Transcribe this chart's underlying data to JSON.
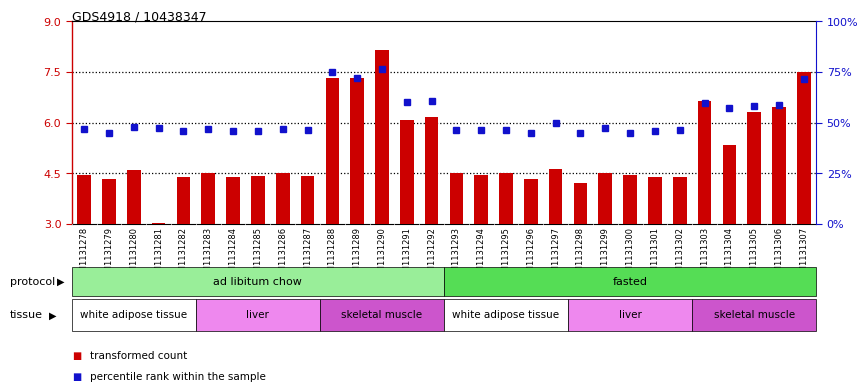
{
  "title": "GDS4918 / 10438347",
  "samples": [
    "GSM1131278",
    "GSM1131279",
    "GSM1131280",
    "GSM1131281",
    "GSM1131282",
    "GSM1131283",
    "GSM1131284",
    "GSM1131285",
    "GSM1131286",
    "GSM1131287",
    "GSM1131288",
    "GSM1131289",
    "GSM1131290",
    "GSM1131291",
    "GSM1131292",
    "GSM1131293",
    "GSM1131294",
    "GSM1131295",
    "GSM1131296",
    "GSM1131297",
    "GSM1131298",
    "GSM1131299",
    "GSM1131300",
    "GSM1131301",
    "GSM1131302",
    "GSM1131303",
    "GSM1131304",
    "GSM1131305",
    "GSM1131306",
    "GSM1131307"
  ],
  "bar_values": [
    4.45,
    4.32,
    4.58,
    3.02,
    4.4,
    4.5,
    4.4,
    4.42,
    4.5,
    4.42,
    7.32,
    7.32,
    8.15,
    6.08,
    6.15,
    4.5,
    4.45,
    4.5,
    4.33,
    4.63,
    4.22,
    4.5,
    4.45,
    4.4,
    4.38,
    6.63,
    5.32,
    6.3,
    6.45,
    7.5
  ],
  "dot_values": [
    5.8,
    5.7,
    5.88,
    5.85,
    5.76,
    5.8,
    5.75,
    5.74,
    5.82,
    5.78,
    7.5,
    7.32,
    7.6,
    6.6,
    6.65,
    5.78,
    5.78,
    5.77,
    5.7,
    5.98,
    5.7,
    5.85,
    5.7,
    5.74,
    5.78,
    6.58,
    6.43,
    6.5,
    6.53,
    7.3
  ],
  "bar_color": "#cc0000",
  "dot_color": "#1111cc",
  "ylim_min": 3,
  "ylim_max": 9,
  "yticks_left": [
    3,
    4.5,
    6,
    7.5,
    9
  ],
  "yticks_right_pct": [
    0,
    25,
    50,
    75,
    100
  ],
  "protocol_groups": [
    {
      "label": "ad libitum chow",
      "start": 0,
      "end": 14,
      "color": "#99ee99"
    },
    {
      "label": "fasted",
      "start": 15,
      "end": 29,
      "color": "#55dd55"
    }
  ],
  "tissue_groups": [
    {
      "label": "white adipose tissue",
      "start": 0,
      "end": 4,
      "color": "#ffffff"
    },
    {
      "label": "liver",
      "start": 5,
      "end": 9,
      "color": "#ee88ee"
    },
    {
      "label": "skeletal muscle",
      "start": 10,
      "end": 14,
      "color": "#cc55cc"
    },
    {
      "label": "white adipose tissue",
      "start": 15,
      "end": 19,
      "color": "#ffffff"
    },
    {
      "label": "liver",
      "start": 20,
      "end": 24,
      "color": "#ee88ee"
    },
    {
      "label": "skeletal muscle",
      "start": 25,
      "end": 29,
      "color": "#cc55cc"
    }
  ],
  "legend": [
    {
      "label": "transformed count",
      "color": "#cc0000"
    },
    {
      "label": "percentile rank within the sample",
      "color": "#1111cc"
    }
  ],
  "dotted_lines": [
    4.5,
    6.0,
    7.5
  ],
  "bar_bottom": 3.0,
  "bar_width": 0.55
}
